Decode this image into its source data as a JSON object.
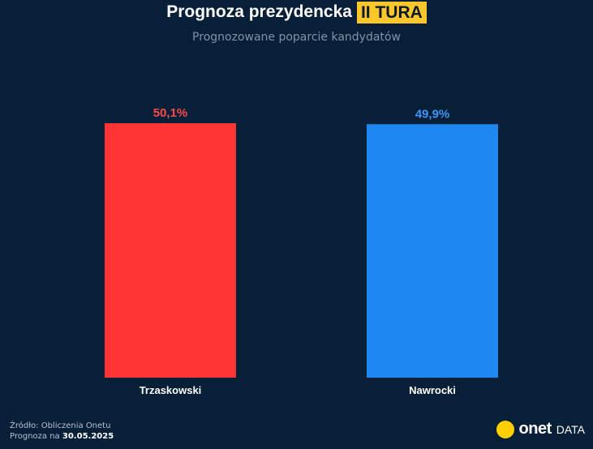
{
  "header": {
    "title": "Prognoza prezydencka",
    "tag": "II TURA",
    "subtitle": "Prognozowane poparcie kandydatów"
  },
  "chart_data": {
    "type": "bar",
    "title": "Prognoza prezydencka II TURA",
    "subtitle": "Prognozowane poparcie kandydatów",
    "categories": [
      "Trzaskowski",
      "Nawrocki"
    ],
    "values": [
      50.1,
      49.9
    ],
    "value_labels": [
      "50,1%",
      "49,9%"
    ],
    "colors": [
      "#ff3535",
      "#1e88f0"
    ],
    "label_colors": [
      "#ff4a4a",
      "#3f95f5"
    ],
    "xlabel": "",
    "ylabel": "",
    "ylim": [
      0,
      50.1
    ],
    "grid": false,
    "legend": "none"
  },
  "footer": {
    "source_line": "Źródło: Obliczenia Onetu",
    "forecast_prefix": "Prognoza na",
    "forecast_date": "30.05.2025"
  },
  "brand": {
    "name": "onet",
    "suffix": "DATA",
    "dot_color": "#ffd000"
  }
}
